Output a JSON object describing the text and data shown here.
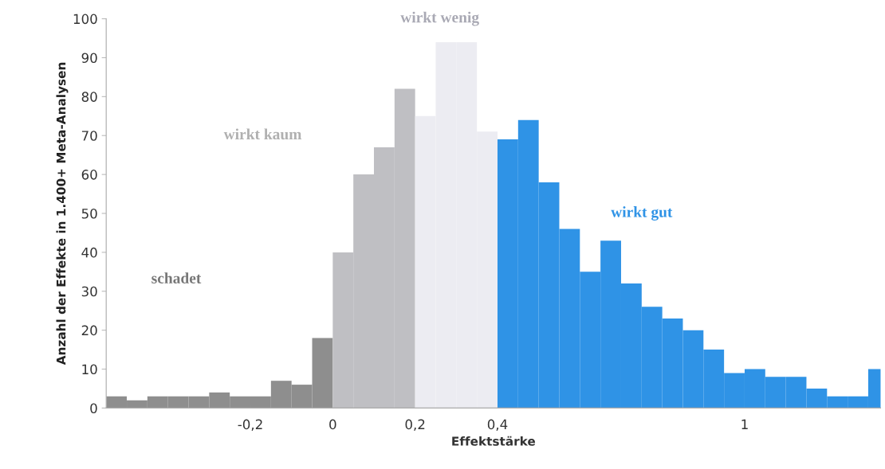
{
  "chart_data": {
    "type": "histogram",
    "xlabel": "Effektstärke",
    "ylabel": "Anzahl der Effekte in 1.400+ Meta-Analysen",
    "bins": [
      -0.55,
      -0.5,
      -0.45,
      -0.4,
      -0.35,
      -0.3,
      -0.25,
      -0.2,
      -0.15,
      -0.1,
      -0.05,
      0,
      0.05,
      0.1,
      0.15,
      0.2,
      0.25,
      0.3,
      0.35,
      0.4,
      0.45,
      0.5,
      0.55,
      0.6,
      0.65,
      0.7,
      0.75,
      0.8,
      0.85,
      0.9,
      0.95,
      1,
      1.05,
      1.1,
      1.15,
      1.2,
      1.25,
      1.3,
      1.35
    ],
    "values": [
      3,
      2,
      3,
      3,
      3,
      4,
      3,
      3,
      7,
      6,
      18,
      40,
      60,
      67,
      82,
      75,
      94,
      94,
      71,
      69,
      74,
      58,
      46,
      35,
      43,
      32,
      26,
      23,
      20,
      15,
      9,
      10,
      8,
      8,
      5,
      3,
      3,
      10
    ],
    "colors": [
      "#8e8e8e",
      "#8e8e8e",
      "#8e8e8e",
      "#8e8e8e",
      "#8e8e8e",
      "#8e8e8e",
      "#8e8e8e",
      "#8e8e8e",
      "#8e8e8e",
      "#8e8e8e",
      "#8e8e8e",
      "#bfbfc3",
      "#bfbfc3",
      "#bfbfc3",
      "#bfbfc3",
      "#ececf2",
      "#ececf2",
      "#ececf2",
      "#ececf2",
      "#2f93e6",
      "#2f93e6",
      "#2f93e6",
      "#2f93e6",
      "#2f93e6",
      "#2f93e6",
      "#2f93e6",
      "#2f93e6",
      "#2f93e6",
      "#2f93e6",
      "#2f93e6",
      "#2f93e6",
      "#2f93e6",
      "#2f93e6",
      "#2f93e6",
      "#2f93e6",
      "#2f93e6",
      "#2f93e6",
      "#2f93e6"
    ],
    "xlim": [
      -0.55,
      1.33
    ],
    "ylim": [
      0,
      100
    ],
    "xticks": [
      {
        "value": -0.2,
        "label": "-0,2"
      },
      0,
      {
        "value": 0.2,
        "label": "0,2"
      },
      {
        "value": 0.4,
        "label": "0,4"
      },
      1
    ],
    "yticks": [
      0,
      10,
      20,
      30,
      40,
      50,
      60,
      70,
      80,
      90,
      100
    ],
    "annotations": [
      "schadet",
      "wirkt kaum",
      "wirkt wenig",
      "wirkt gut"
    ],
    "grid": false
  }
}
